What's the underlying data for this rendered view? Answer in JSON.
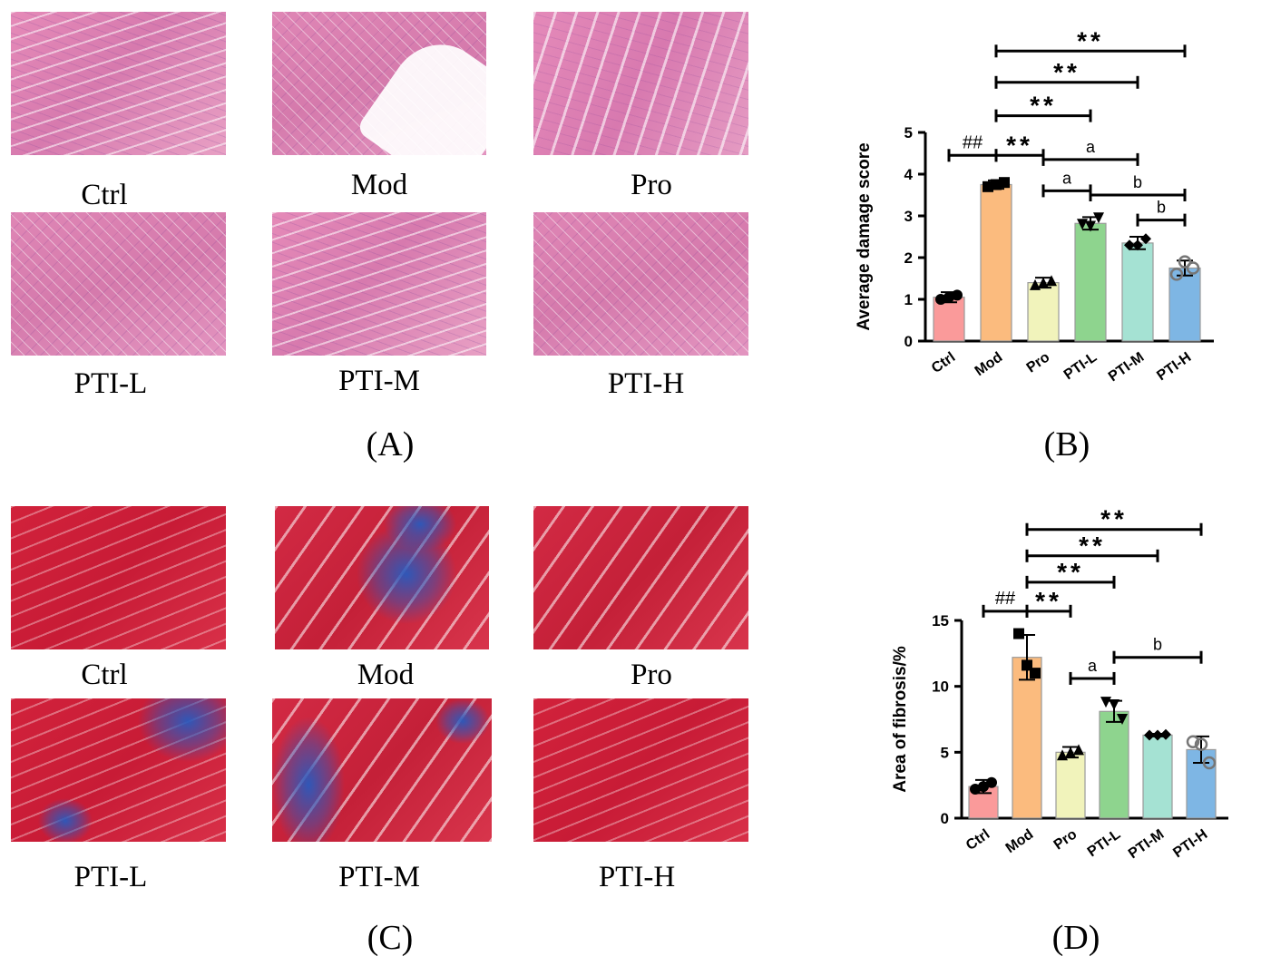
{
  "panels": {
    "a": "(A)",
    "b": "(B)",
    "c": "(C)",
    "d": "(D)"
  },
  "groups": [
    "Ctrl",
    "Mod",
    "Pro",
    "PTI-L",
    "PTI-M",
    "PTI-H"
  ],
  "hist_labels_a": [
    "Ctrl",
    "Mod",
    "Pro",
    "PTI-L",
    "PTI-M",
    "PTI-H"
  ],
  "hist_labels_c": [
    "Ctrl",
    "Mod",
    "Pro",
    "PTI-L",
    "PTI-M",
    "PTI-H"
  ],
  "colors": {
    "bars": [
      "#fa9a9a",
      "#fbbb7e",
      "#f1f3bb",
      "#8ed48e",
      "#a5e2d3",
      "#7eb6e4"
    ],
    "mt_red": "#c81b36",
    "he_pink": "#d97bb0"
  },
  "chart_data": [
    {
      "id": "B",
      "type": "bar",
      "categories": [
        "Ctrl",
        "Mod",
        "Pro",
        "PTI-L",
        "PTI-M",
        "PTI-H"
      ],
      "values": [
        1.05,
        3.75,
        1.4,
        2.82,
        2.35,
        1.75
      ],
      "errors": [
        0.12,
        0.1,
        0.12,
        0.15,
        0.15,
        0.18
      ],
      "points": [
        [
          1.0,
          1.1,
          1.05
        ],
        [
          3.7,
          3.8,
          3.75
        ],
        [
          1.35,
          1.45,
          1.4
        ],
        [
          2.8,
          2.95,
          2.75
        ],
        [
          2.3,
          2.45,
          2.3
        ],
        [
          1.6,
          1.75,
          1.9
        ]
      ],
      "markers": [
        "circle",
        "square",
        "triangle",
        "triangle-down",
        "diamond",
        "open-circle"
      ],
      "xlabel": "",
      "ylabel": "Average damage score",
      "ylim": [
        0,
        5
      ],
      "yticks": [
        "0",
        "1",
        "2",
        "3",
        "4",
        "5"
      ],
      "brackets": [
        {
          "from": 0,
          "to": 1,
          "label": "##",
          "y": 4.45
        },
        {
          "from": 1,
          "to": 2,
          "label": "**",
          "y": 4.45
        },
        {
          "from": 1,
          "to": 3,
          "label": "**",
          "y": 5.4
        },
        {
          "from": 1,
          "to": 4,
          "label": "**",
          "y": 6.2
        },
        {
          "from": 1,
          "to": 5,
          "label": "**",
          "y": 6.95
        },
        {
          "from": 2,
          "to": 4,
          "label": "a",
          "y": 4.35
        },
        {
          "from": 2,
          "to": 3,
          "label": "a",
          "y": 3.6
        },
        {
          "from": 3,
          "to": 5,
          "label": "b",
          "y": 3.5
        },
        {
          "from": 4,
          "to": 5,
          "label": "b",
          "y": 2.9
        }
      ]
    },
    {
      "id": "D",
      "type": "bar",
      "categories": [
        "Ctrl",
        "Mod",
        "Pro",
        "PTI-L",
        "PTI-M",
        "PTI-H"
      ],
      "values": [
        2.4,
        12.2,
        5.0,
        8.1,
        6.3,
        5.2
      ],
      "errors": [
        0.5,
        1.7,
        0.4,
        0.8,
        0.1,
        1.0
      ],
      "points": [
        [
          2.2,
          2.7,
          2.4
        ],
        [
          14.0,
          11.0,
          11.6
        ],
        [
          4.8,
          5.2,
          5.0
        ],
        [
          8.8,
          7.5,
          8.6
        ],
        [
          6.3,
          6.35,
          6.3
        ],
        [
          5.8,
          4.2,
          5.6
        ]
      ],
      "markers": [
        "circle",
        "square",
        "triangle",
        "triangle-down",
        "diamond",
        "open-circle"
      ],
      "xlabel": "",
      "ylabel": "Area of fibrosis/%",
      "ylim": [
        0,
        15
      ],
      "yticks": [
        "0",
        "5",
        "10",
        "15"
      ],
      "brackets": [
        {
          "from": 0,
          "to": 1,
          "label": "##",
          "y": 15.7
        },
        {
          "from": 1,
          "to": 2,
          "label": "**",
          "y": 15.7
        },
        {
          "from": 1,
          "to": 3,
          "label": "**",
          "y": 17.9
        },
        {
          "from": 1,
          "to": 4,
          "label": "**",
          "y": 19.9
        },
        {
          "from": 1,
          "to": 5,
          "label": "**",
          "y": 21.9
        },
        {
          "from": 2,
          "to": 3,
          "label": "a",
          "y": 10.6
        },
        {
          "from": 3,
          "to": 5,
          "label": "b",
          "y": 12.2
        }
      ]
    }
  ]
}
